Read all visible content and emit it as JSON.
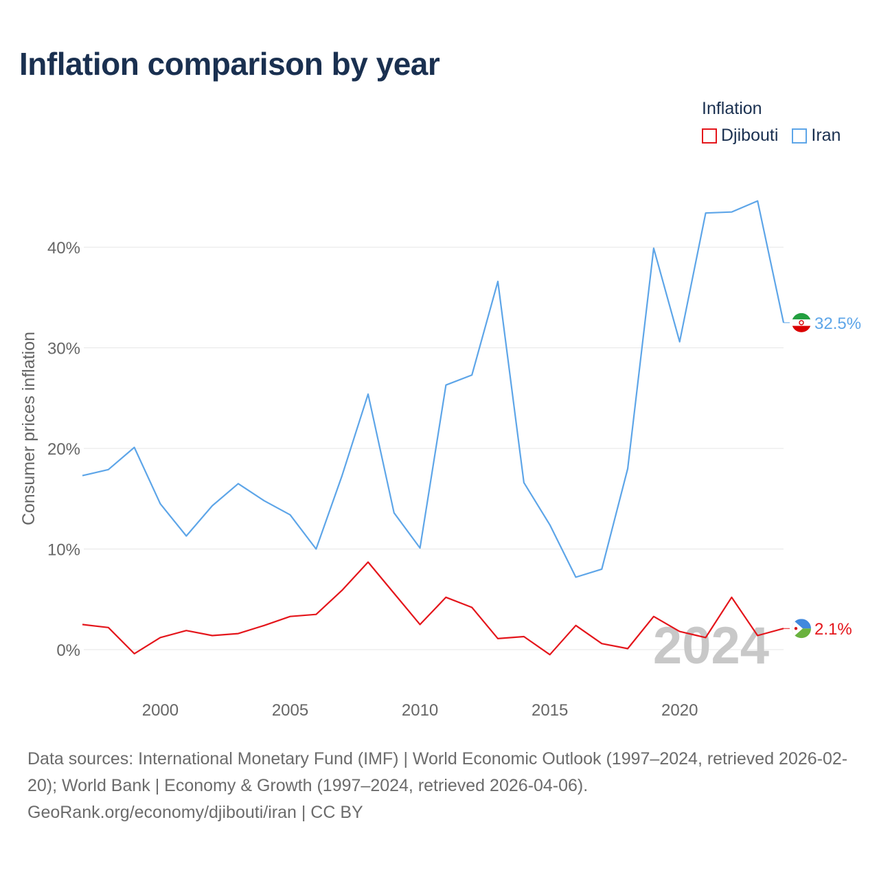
{
  "title": "Inflation comparison by year",
  "legend": {
    "title": "Inflation",
    "items": [
      {
        "name": "Djibouti",
        "color": "#e4151b"
      },
      {
        "name": "Iran",
        "color": "#5da5e8"
      }
    ]
  },
  "source": {
    "line1": "Data sources: International Monetary Fund (IMF) | World Economic Outlook (1997–2024, retrieved 2026-02-20); World Bank | Economy & Growth (1997–2024, retrieved 2026-04-06).",
    "line2": "GeoRank.org/economy/djibouti/iran | CC BY"
  },
  "chart_data": {
    "type": "line",
    "title": "Inflation comparison by year",
    "xlabel": "",
    "ylabel": "Consumer prices inflation",
    "year_watermark": "2024",
    "xlim": [
      1997,
      2024
    ],
    "ylim": [
      -4,
      47
    ],
    "x_ticks": [
      2000,
      2005,
      2010,
      2015,
      2020
    ],
    "y_ticks": [
      0,
      10,
      20,
      30,
      40
    ],
    "y_tick_labels": [
      "0%",
      "10%",
      "20%",
      "30%",
      "40%"
    ],
    "grid": true,
    "legend_position": "top-right",
    "x": [
      1997,
      1998,
      1999,
      2000,
      2001,
      2002,
      2003,
      2004,
      2005,
      2006,
      2007,
      2008,
      2009,
      2010,
      2011,
      2012,
      2013,
      2014,
      2015,
      2016,
      2017,
      2018,
      2019,
      2020,
      2021,
      2022,
      2023,
      2024
    ],
    "series": [
      {
        "name": "Djibouti",
        "color": "#e4151b",
        "end_label": "2.1%",
        "values": [
          2.5,
          2.2,
          -0.4,
          1.2,
          1.9,
          1.4,
          1.6,
          2.4,
          3.3,
          3.5,
          5.9,
          8.7,
          5.6,
          2.5,
          5.2,
          4.2,
          1.1,
          1.3,
          -0.5,
          2.4,
          0.6,
          0.1,
          3.3,
          1.8,
          1.2,
          5.2,
          1.4,
          2.1
        ]
      },
      {
        "name": "Iran",
        "color": "#5da5e8",
        "end_label": "32.5%",
        "values": [
          17.3,
          17.9,
          20.1,
          14.5,
          11.3,
          14.3,
          16.5,
          14.8,
          13.4,
          10.0,
          17.3,
          25.4,
          13.6,
          10.1,
          26.3,
          27.3,
          36.6,
          16.6,
          12.4,
          7.2,
          8.0,
          18.0,
          39.9,
          30.6,
          43.4,
          43.5,
          44.6,
          32.5
        ]
      }
    ]
  }
}
